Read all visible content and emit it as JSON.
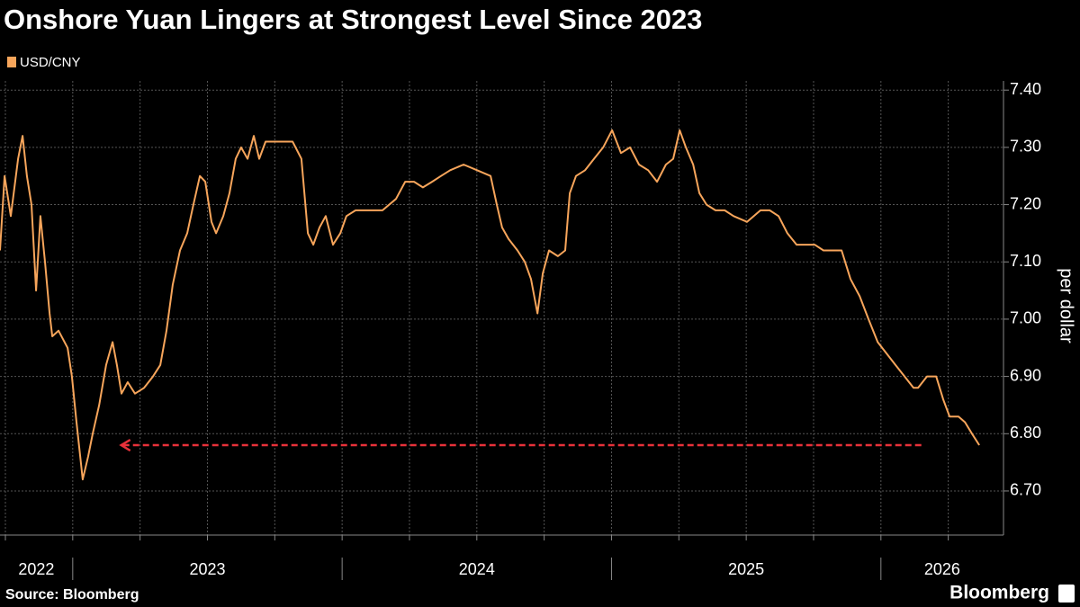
{
  "chart_data": {
    "type": "line",
    "title": "Onshore Yuan Lingers at Strongest Level Since 2023",
    "ylabel": "per dollar",
    "source": "Source: Bloomberg",
    "logo": "Bloomberg",
    "grid": true,
    "legend": "top-left",
    "xlim": [
      2022.73,
      2026.455
    ],
    "ylim": [
      6.623,
      7.416
    ],
    "yticks": [
      {
        "value": 6.7,
        "label": "6.70"
      },
      {
        "value": 6.8,
        "label": "6.80"
      },
      {
        "value": 6.9,
        "label": "6.90"
      },
      {
        "value": 7.0,
        "label": "7.00"
      },
      {
        "value": 7.1,
        "label": "7.10"
      },
      {
        "value": 7.2,
        "label": "7.20"
      },
      {
        "value": 7.3,
        "label": "7.30"
      },
      {
        "value": 7.4,
        "label": "7.40"
      }
    ],
    "xticks": [
      {
        "value": 2022,
        "label": "2022"
      },
      {
        "value": 2023,
        "label": "2023"
      },
      {
        "value": 2024,
        "label": "2024"
      },
      {
        "value": 2025,
        "label": "2025"
      },
      {
        "value": 2026,
        "label": "2026"
      }
    ],
    "xgrid": [
      2022.75,
      2023,
      2023.25,
      2023.5,
      2023.75,
      2024,
      2024.25,
      2024.5,
      2024.75,
      2025,
      2025.25,
      2025.5,
      2025.75,
      2026,
      2026.25
    ],
    "annotation": {
      "y": 6.78,
      "x_start": 2026.15,
      "x_end": 2023.18,
      "color": "#e8313a"
    },
    "series": [
      {
        "name": "USD/CNY",
        "color": "#f7a55b",
        "x": [
          2022.73,
          2022.747,
          2022.77,
          2022.797,
          2022.814,
          2022.83,
          2022.847,
          2022.864,
          2022.88,
          2022.897,
          2022.914,
          2022.924,
          2022.947,
          2022.981,
          2022.997,
          2023.014,
          2023.037,
          2023.057,
          2023.074,
          2023.098,
          2023.124,
          2023.148,
          2023.164,
          2023.181,
          2023.204,
          2023.231,
          2023.265,
          2023.298,
          2023.325,
          2023.348,
          2023.371,
          2023.398,
          2023.425,
          2023.448,
          2023.472,
          2023.492,
          2023.515,
          2023.532,
          2023.559,
          2023.582,
          2023.605,
          2023.625,
          2023.649,
          2023.672,
          2023.692,
          2023.716,
          2023.749,
          2023.782,
          2023.816,
          2023.849,
          2023.873,
          2023.893,
          2023.916,
          2023.939,
          2023.966,
          2023.993,
          2024.016,
          2024.05,
          2024.1,
          2024.15,
          2024.2,
          2024.234,
          2024.267,
          2024.3,
          2024.334,
          2024.367,
          2024.401,
          2024.451,
          2024.501,
          2024.551,
          2024.574,
          2024.594,
          2024.618,
          2024.651,
          2024.678,
          2024.701,
          2024.725,
          2024.745,
          2024.768,
          2024.801,
          2024.828,
          2024.845,
          2024.868,
          2024.902,
          2024.935,
          2024.969,
          2025.002,
          2025.035,
          2025.069,
          2025.102,
          2025.136,
          2025.169,
          2025.202,
          2025.229,
          2025.253,
          2025.276,
          2025.303,
          2025.326,
          2025.353,
          2025.386,
          2025.42,
          2025.453,
          2025.503,
          2025.553,
          2025.587,
          2025.62,
          2025.653,
          2025.687,
          2025.72,
          2025.754,
          2025.787,
          2025.821,
          2025.854,
          2025.887,
          2025.921,
          2025.954,
          2025.988,
          2026.021,
          2026.054,
          2026.088,
          2026.121,
          2026.138,
          2026.171,
          2026.205,
          2026.231,
          2026.255,
          2026.288,
          2026.312,
          2026.338,
          2026.365
        ],
        "values": [
          7.12,
          7.25,
          7.18,
          7.28,
          7.32,
          7.25,
          7.2,
          7.05,
          7.18,
          7.1,
          7.01,
          6.97,
          6.98,
          6.95,
          6.9,
          6.82,
          6.72,
          6.76,
          6.8,
          6.85,
          6.92,
          6.96,
          6.92,
          6.87,
          6.89,
          6.87,
          6.88,
          6.9,
          6.92,
          6.98,
          7.06,
          7.12,
          7.15,
          7.2,
          7.25,
          7.24,
          7.17,
          7.15,
          7.18,
          7.22,
          7.28,
          7.3,
          7.28,
          7.32,
          7.28,
          7.31,
          7.31,
          7.31,
          7.31,
          7.28,
          7.15,
          7.13,
          7.16,
          7.18,
          7.13,
          7.15,
          7.18,
          7.19,
          7.19,
          7.19,
          7.21,
          7.24,
          7.24,
          7.23,
          7.24,
          7.25,
          7.26,
          7.27,
          7.26,
          7.25,
          7.2,
          7.16,
          7.14,
          7.12,
          7.1,
          7.07,
          7.01,
          7.08,
          7.12,
          7.11,
          7.12,
          7.22,
          7.25,
          7.26,
          7.28,
          7.3,
          7.33,
          7.29,
          7.3,
          7.27,
          7.26,
          7.24,
          7.27,
          7.28,
          7.33,
          7.3,
          7.27,
          7.22,
          7.2,
          7.19,
          7.19,
          7.18,
          7.17,
          7.19,
          7.19,
          7.18,
          7.15,
          7.13,
          7.13,
          7.13,
          7.12,
          7.12,
          7.12,
          7.07,
          7.04,
          7.0,
          6.96,
          6.94,
          6.92,
          6.9,
          6.88,
          6.88,
          6.9,
          6.9,
          6.86,
          6.83,
          6.83,
          6.82,
          6.8,
          6.78
        ]
      }
    ]
  }
}
